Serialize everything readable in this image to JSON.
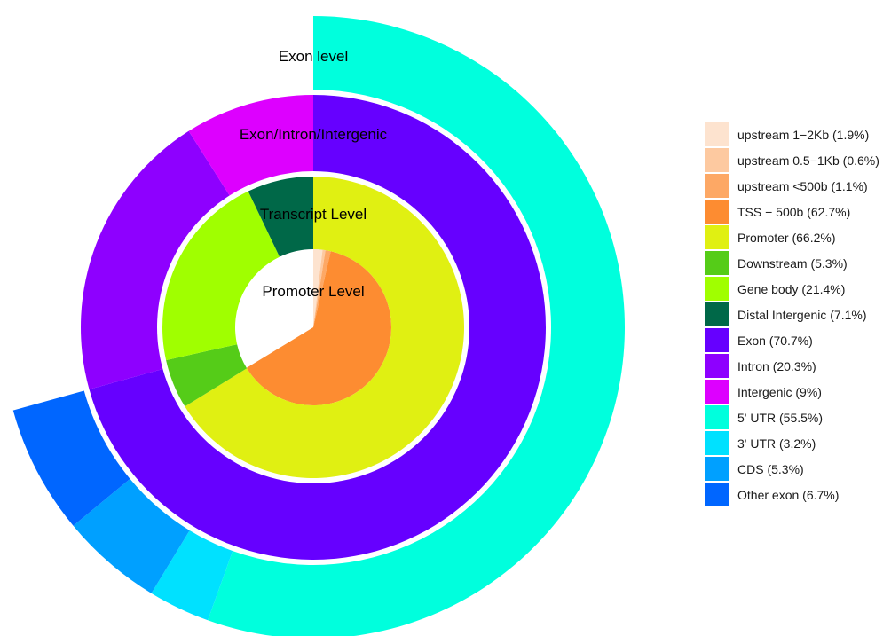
{
  "chart_data": {
    "type": "sunburst",
    "rings": [
      {
        "name": "Promoter Level",
        "start_deg": 0,
        "segments": [
          {
            "category": "upstream 1−2Kb",
            "percent": 1.9,
            "color": "#FDE3CF"
          },
          {
            "category": "upstream 0.5−1Kb",
            "percent": 0.6,
            "color": "#FDC9A0"
          },
          {
            "category": "upstream <500b",
            "percent": 1.1,
            "color": "#FDA865"
          },
          {
            "category": "TSS − 500b",
            "percent": 62.7,
            "color": "#FD8C31"
          }
        ]
      },
      {
        "name": "Transcript Level",
        "start_deg": 0,
        "segments": [
          {
            "category": "Promoter",
            "percent": 66.2,
            "color": "#E0F012"
          },
          {
            "category": "Downstream",
            "percent": 5.3,
            "color": "#55CC18"
          },
          {
            "category": "Gene body",
            "percent": 21.4,
            "color": "#A0FF00"
          },
          {
            "category": "Distal Intergenic",
            "percent": 7.1,
            "color": "#006848"
          }
        ]
      },
      {
        "name": "Exon/Intron/Intergenic",
        "start_deg": 0,
        "segments": [
          {
            "category": "Exon",
            "percent": 70.7,
            "color": "#6600FF"
          },
          {
            "category": "Intron",
            "percent": 20.3,
            "color": "#8E00FF"
          },
          {
            "category": "Intergenic",
            "percent": 9.0,
            "color": "#DD00FF"
          }
        ]
      },
      {
        "name": "Exon level",
        "start_deg": 0,
        "segments": [
          {
            "category": "5' UTR",
            "percent": 55.5,
            "color": "#00FFDD"
          },
          {
            "category": "3' UTR",
            "percent": 3.2,
            "color": "#00E1FF"
          },
          {
            "category": "CDS",
            "percent": 5.3,
            "color": "#00A0FF"
          },
          {
            "category": "Other exon",
            "percent": 6.7,
            "color": "#0066FF"
          }
        ]
      }
    ],
    "legend": {
      "position": "right",
      "entries": [
        {
          "label": "upstream 1−2Kb (1.9%)",
          "color": "#FDE3CF"
        },
        {
          "label": "upstream 0.5−1Kb (0.6%)",
          "color": "#FDC9A0"
        },
        {
          "label": "upstream <500b (1.1%)",
          "color": "#FDA865"
        },
        {
          "label": "TSS − 500b (62.7%)",
          "color": "#FD8C31"
        },
        {
          "label": "Promoter (66.2%)",
          "color": "#E0F012"
        },
        {
          "label": "Downstream (5.3%)",
          "color": "#55CC18"
        },
        {
          "label": "Gene body (21.4%)",
          "color": "#A0FF00"
        },
        {
          "label": "Distal Intergenic (7.1%)",
          "color": "#006848"
        },
        {
          "label": "Exon (70.7%)",
          "color": "#6600FF"
        },
        {
          "label": "Intron (20.3%)",
          "color": "#8E00FF"
        },
        {
          "label": "Intergenic (9%)",
          "color": "#DD00FF"
        },
        {
          "label": "5' UTR (55.5%)",
          "color": "#00FFDD"
        },
        {
          "label": "3' UTR (3.2%)",
          "color": "#00E1FF"
        },
        {
          "label": "CDS (5.3%)",
          "color": "#00A0FF"
        },
        {
          "label": "Other exon (6.7%)",
          "color": "#0066FF"
        }
      ]
    }
  }
}
